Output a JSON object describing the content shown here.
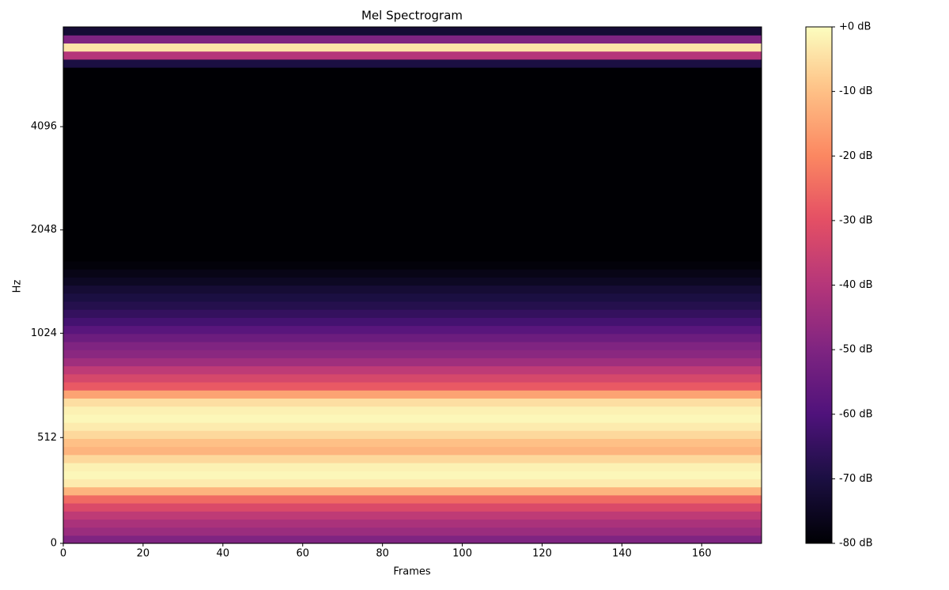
{
  "chart_data": {
    "type": "heatmap",
    "title": "Mel Spectrogram",
    "xlabel": "Frames",
    "ylabel": "Hz",
    "xlim": [
      0,
      175
    ],
    "xticks": [
      0,
      20,
      40,
      60,
      80,
      100,
      120,
      140,
      160
    ],
    "ylim": [
      0,
      8000
    ],
    "yticks": [
      0,
      512,
      1024,
      2048,
      4096
    ],
    "yscale": {
      "type": "symlog",
      "base": 2,
      "linthresh": 1000,
      "linscale": 2
    },
    "colormap": "magma",
    "clim": [
      -80,
      0
    ],
    "cticks": [
      {
        "value": 0,
        "label": "+0 dB"
      },
      {
        "value": -10,
        "label": "-10 dB"
      },
      {
        "value": -20,
        "label": "-20 dB"
      },
      {
        "value": -30,
        "label": "-30 dB"
      },
      {
        "value": -40,
        "label": "-40 dB"
      },
      {
        "value": -50,
        "label": "-50 dB"
      },
      {
        "value": -60,
        "label": "-60 dB"
      },
      {
        "value": -70,
        "label": "-70 dB"
      },
      {
        "value": -80,
        "label": "-80 dB"
      }
    ],
    "z": [
      -50,
      -45,
      -42,
      -38,
      -32,
      -25,
      -12,
      -3,
      -1,
      -2,
      -6,
      -12,
      -10,
      -6,
      -3,
      -1,
      -2,
      -5,
      -15,
      -28,
      -33,
      -38,
      -44,
      -48,
      -50,
      -54,
      -58,
      -62,
      -65,
      -68,
      -70,
      -72,
      -75,
      -77,
      -79,
      -80,
      -80,
      -80,
      -80,
      -80,
      -80,
      -80,
      -80,
      -80,
      -80,
      -80,
      -80,
      -80,
      -80,
      -80,
      -80,
      -80,
      -80,
      -80,
      -80,
      -80,
      -80,
      -80,
      -80,
      -70,
      -40,
      -4,
      -50,
      -72
    ]
  }
}
